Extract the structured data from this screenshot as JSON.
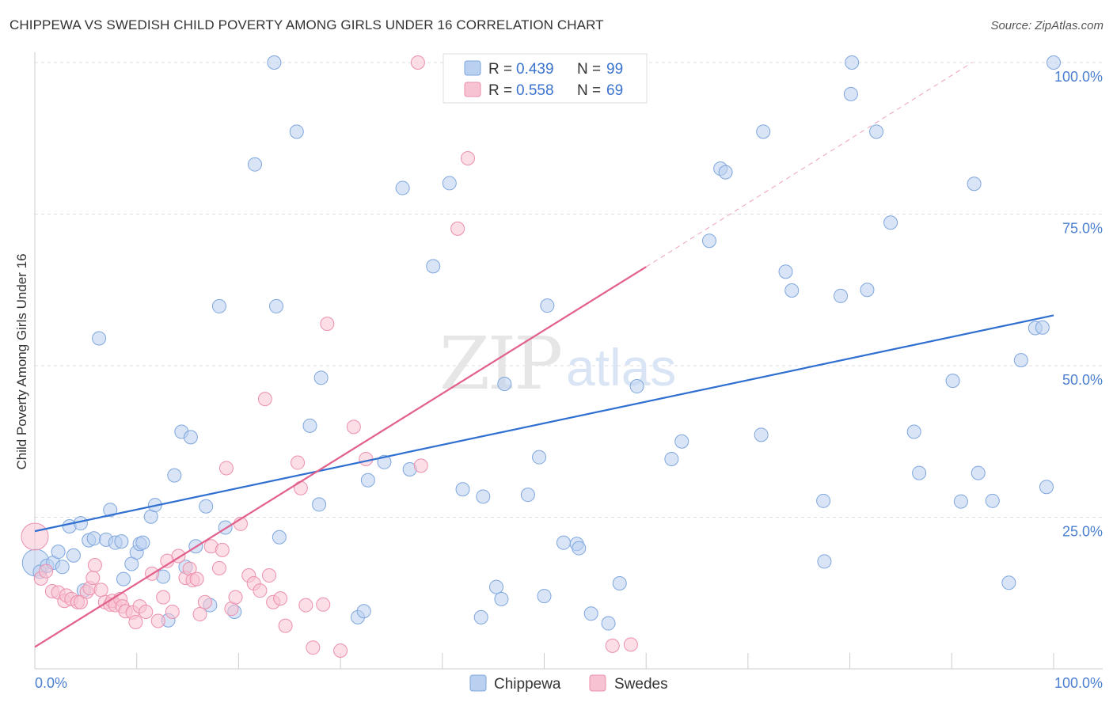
{
  "title": "CHIPPEWA VS SWEDISH CHILD POVERTY AMONG GIRLS UNDER 16 CORRELATION CHART",
  "source": "Source: ZipAtlas.com",
  "watermark": {
    "part1": "ZIP",
    "part2": "atlas"
  },
  "legend_top": [
    {
      "r_label": "R =",
      "r_value": "0.439",
      "n_label": "N =",
      "n_value": "99"
    },
    {
      "r_label": "R =",
      "r_value": "0.558",
      "n_label": "N =",
      "n_value": "69"
    }
  ],
  "colors": {
    "chippewa_fill": "#b9d0f0",
    "chippewa_stroke": "#7ea6dd",
    "chippewa_line": "#2f6fd0",
    "swedes_fill": "#f7c2d2",
    "swedes_stroke": "#ec90ad",
    "swedes_line": "#e2608c",
    "grid": "#dddddd",
    "axis_label": "#4a7fd0"
  },
  "chart_data": {
    "type": "scatter",
    "title": "CHIPPEWA VS SWEDISH CHILD POVERTY AMONG GIRLS UNDER 16 CORRELATION CHART",
    "xlabel": "",
    "ylabel": "Child Poverty Among Girls Under 16",
    "xlim": [
      0,
      100
    ],
    "ylim": [
      0,
      100
    ],
    "x_tick_labels": [
      "0.0%",
      "100.0%"
    ],
    "y_tick_labels": [
      "25.0%",
      "50.0%",
      "75.0%",
      "100.0%"
    ],
    "y_ticks": [
      25,
      50,
      75,
      100
    ],
    "grid": true,
    "legend_placement": "bottom-center",
    "series": [
      {
        "name": "Chippewa",
        "R": 0.439,
        "N": 99,
        "trend": {
          "x0": 0,
          "y0": 22.7,
          "x1": 100,
          "y1": 58.3
        },
        "points": [
          [
            0.1,
            17.5
          ],
          [
            0.5,
            16.0
          ],
          [
            1.2,
            17.0
          ],
          [
            1.8,
            17.5
          ],
          [
            2.3,
            19.3
          ],
          [
            2.7,
            16.8
          ],
          [
            3.4,
            23.5
          ],
          [
            3.8,
            18.7
          ],
          [
            4.5,
            24.0
          ],
          [
            4.8,
            12.9
          ],
          [
            5.3,
            21.2
          ],
          [
            5.8,
            21.5
          ],
          [
            6.3,
            54.5
          ],
          [
            7.0,
            21.3
          ],
          [
            7.4,
            26.2
          ],
          [
            7.9,
            20.8
          ],
          [
            8.5,
            21.0
          ],
          [
            8.7,
            14.8
          ],
          [
            9.5,
            17.3
          ],
          [
            10.0,
            19.2
          ],
          [
            10.3,
            20.6
          ],
          [
            10.6,
            20.8
          ],
          [
            11.4,
            25.1
          ],
          [
            11.8,
            27.0
          ],
          [
            12.6,
            15.2
          ],
          [
            13.1,
            8.0
          ],
          [
            13.7,
            31.9
          ],
          [
            14.4,
            39.1
          ],
          [
            14.8,
            16.8
          ],
          [
            15.3,
            38.2
          ],
          [
            15.8,
            20.2
          ],
          [
            16.8,
            26.8
          ],
          [
            17.2,
            10.5
          ],
          [
            18.1,
            59.8
          ],
          [
            18.7,
            23.3
          ],
          [
            19.6,
            9.4
          ],
          [
            21.6,
            83.2
          ],
          [
            23.5,
            100.0
          ],
          [
            23.7,
            59.8
          ],
          [
            24.0,
            21.7
          ],
          [
            25.7,
            88.6
          ],
          [
            27.0,
            40.1
          ],
          [
            27.9,
            27.1
          ],
          [
            28.1,
            48.0
          ],
          [
            31.7,
            8.5
          ],
          [
            32.3,
            9.5
          ],
          [
            32.7,
            31.1
          ],
          [
            34.3,
            34.1
          ],
          [
            36.1,
            79.3
          ],
          [
            36.8,
            32.9
          ],
          [
            39.1,
            66.4
          ],
          [
            40.7,
            80.1
          ],
          [
            42.0,
            29.6
          ],
          [
            43.8,
            8.5
          ],
          [
            44.0,
            28.4
          ],
          [
            45.3,
            13.5
          ],
          [
            45.8,
            11.5
          ],
          [
            46.1,
            47.0
          ],
          [
            48.4,
            28.7
          ],
          [
            49.5,
            34.9
          ],
          [
            50.0,
            12.0
          ],
          [
            50.3,
            59.9
          ],
          [
            51.9,
            20.8
          ],
          [
            53.2,
            20.6
          ],
          [
            53.4,
            19.9
          ],
          [
            54.6,
            9.1
          ],
          [
            56.3,
            7.5
          ],
          [
            57.4,
            14.1
          ],
          [
            59.1,
            46.6
          ],
          [
            62.5,
            34.6
          ],
          [
            63.5,
            37.5
          ],
          [
            66.2,
            70.6
          ],
          [
            67.3,
            82.5
          ],
          [
            67.8,
            81.9
          ],
          [
            71.3,
            38.6
          ],
          [
            71.5,
            88.6
          ],
          [
            73.7,
            65.5
          ],
          [
            74.3,
            62.4
          ],
          [
            77.4,
            27.7
          ],
          [
            77.5,
            17.7
          ],
          [
            79.1,
            61.5
          ],
          [
            80.1,
            94.8
          ],
          [
            80.2,
            100.0
          ],
          [
            81.7,
            62.5
          ],
          [
            82.6,
            88.6
          ],
          [
            84.0,
            73.6
          ],
          [
            86.3,
            39.1
          ],
          [
            86.8,
            32.3
          ],
          [
            90.1,
            47.5
          ],
          [
            90.9,
            27.6
          ],
          [
            92.2,
            80.0
          ],
          [
            92.6,
            32.3
          ],
          [
            94.0,
            27.7
          ],
          [
            95.6,
            14.2
          ],
          [
            96.8,
            50.9
          ],
          [
            98.2,
            56.2
          ],
          [
            98.9,
            56.3
          ],
          [
            99.3,
            30.0
          ],
          [
            100.0,
            100.0
          ]
        ]
      },
      {
        "name": "Swedes",
        "R": 0.558,
        "N": 69,
        "trend": {
          "x0": 0,
          "y0": 3.6,
          "x1": 60,
          "y1": 66.3,
          "dashed_to_x": 92,
          "dashed_to_y": 100
        },
        "points": [
          [
            0.0,
            21.8
          ],
          [
            0.6,
            14.9
          ],
          [
            1.1,
            16.1
          ],
          [
            1.7,
            12.8
          ],
          [
            2.3,
            12.6
          ],
          [
            2.9,
            11.2
          ],
          [
            3.1,
            12.1
          ],
          [
            3.6,
            11.5
          ],
          [
            4.2,
            11.0
          ],
          [
            4.5,
            11.0
          ],
          [
            5.1,
            12.7
          ],
          [
            5.4,
            13.3
          ],
          [
            5.7,
            15.0
          ],
          [
            5.9,
            17.1
          ],
          [
            6.5,
            13.0
          ],
          [
            6.9,
            11.0
          ],
          [
            7.4,
            10.6
          ],
          [
            7.6,
            11.2
          ],
          [
            7.9,
            10.5
          ],
          [
            8.4,
            11.5
          ],
          [
            8.6,
            10.3
          ],
          [
            8.9,
            9.5
          ],
          [
            9.6,
            9.3
          ],
          [
            9.9,
            7.7
          ],
          [
            10.3,
            10.3
          ],
          [
            10.9,
            9.4
          ],
          [
            11.5,
            15.7
          ],
          [
            12.1,
            7.9
          ],
          [
            12.6,
            11.8
          ],
          [
            13.0,
            17.8
          ],
          [
            13.5,
            9.4
          ],
          [
            14.1,
            18.6
          ],
          [
            14.8,
            15.0
          ],
          [
            15.2,
            16.5
          ],
          [
            15.5,
            14.6
          ],
          [
            15.9,
            14.8
          ],
          [
            16.2,
            9.0
          ],
          [
            16.7,
            11.0
          ],
          [
            17.3,
            20.2
          ],
          [
            18.1,
            16.6
          ],
          [
            18.4,
            19.6
          ],
          [
            18.8,
            33.1
          ],
          [
            19.3,
            9.9
          ],
          [
            19.7,
            11.8
          ],
          [
            20.2,
            23.9
          ],
          [
            21.0,
            15.4
          ],
          [
            21.5,
            14.1
          ],
          [
            22.1,
            12.9
          ],
          [
            22.6,
            44.5
          ],
          [
            23.0,
            15.4
          ],
          [
            23.4,
            11.0
          ],
          [
            24.1,
            11.6
          ],
          [
            24.6,
            7.1
          ],
          [
            25.8,
            34.0
          ],
          [
            26.1,
            29.8
          ],
          [
            26.6,
            10.5
          ],
          [
            27.3,
            3.5
          ],
          [
            28.3,
            10.6
          ],
          [
            28.7,
            56.9
          ],
          [
            30.0,
            3.0
          ],
          [
            31.3,
            39.9
          ],
          [
            32.5,
            34.6
          ],
          [
            37.6,
            100.0
          ],
          [
            37.9,
            33.5
          ],
          [
            41.5,
            72.6
          ],
          [
            41.8,
            100.0
          ],
          [
            42.5,
            84.2
          ],
          [
            56.7,
            3.8
          ],
          [
            58.5,
            4.0
          ]
        ]
      }
    ]
  }
}
